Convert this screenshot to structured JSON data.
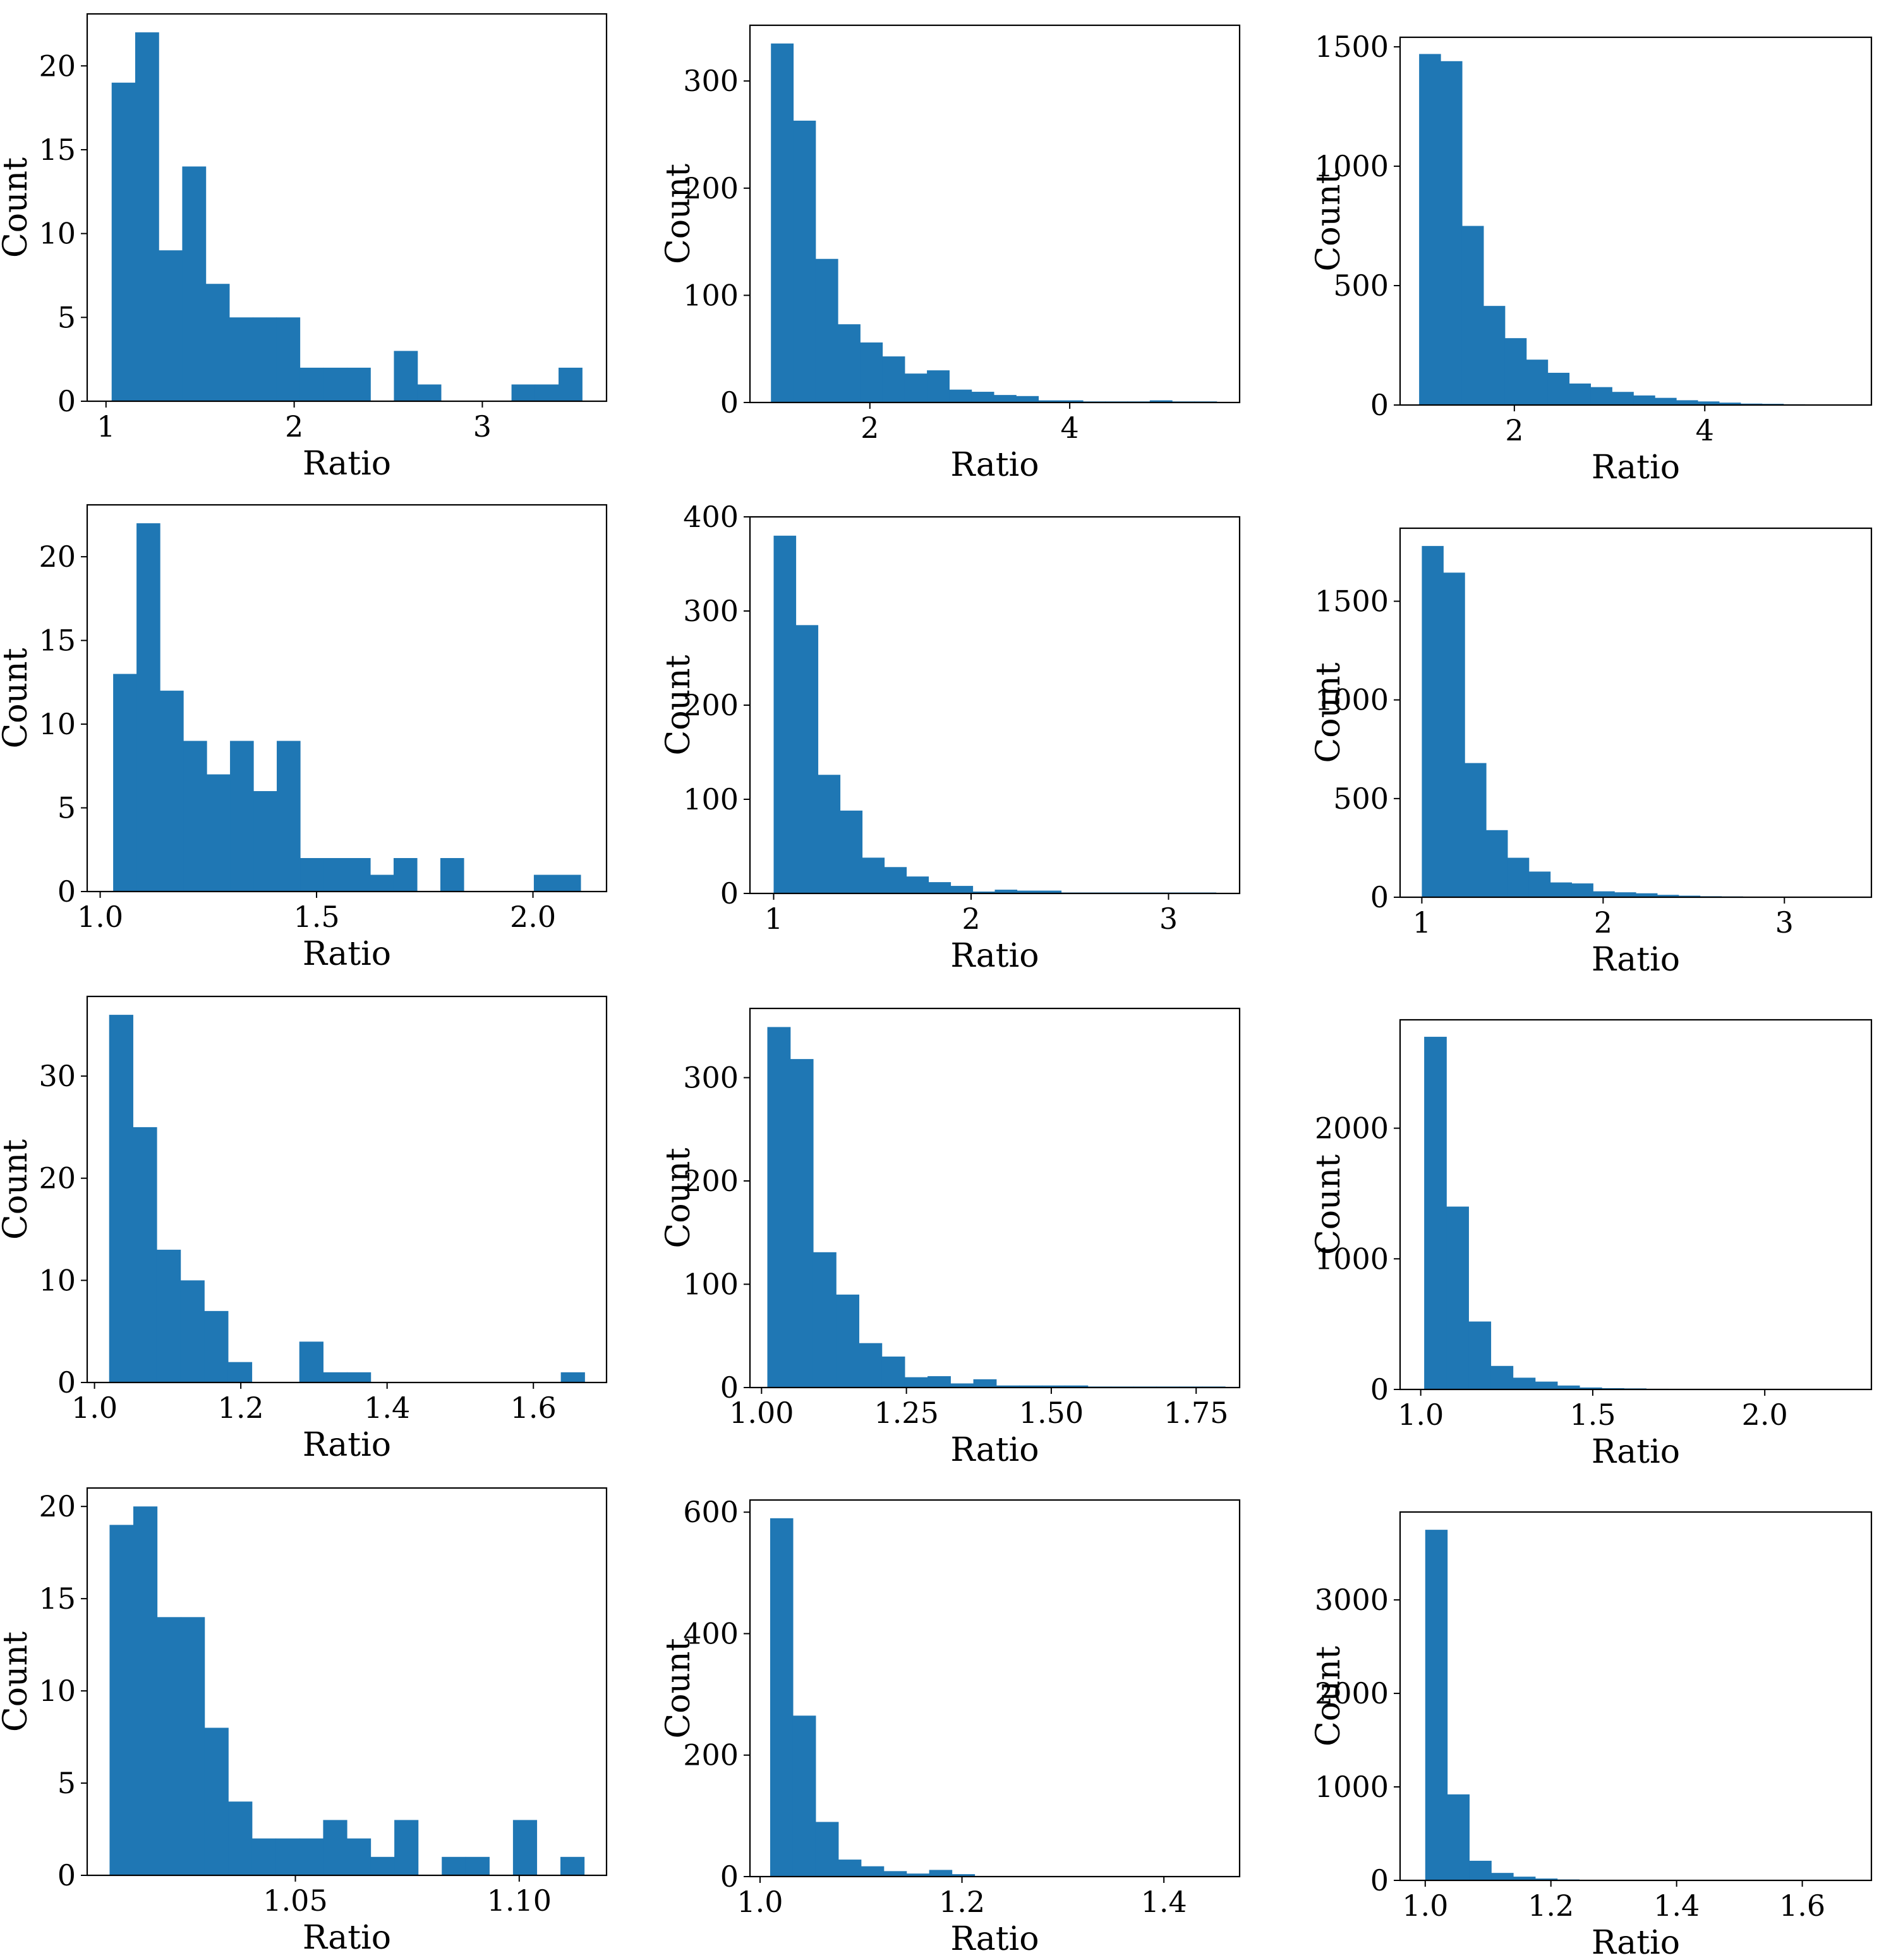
{
  "style": {
    "bar_color": "#1f77b4",
    "axis_color": "#000000"
  },
  "chart_data": [
    {
      "type": "bar",
      "xlabel": "Ratio",
      "ylabel": "Count",
      "xlim": [
        0.9,
        3.66
      ],
      "ylim": [
        0,
        23.1
      ],
      "bins": [
        1.03,
        1.155,
        1.28,
        1.405,
        1.53,
        1.655,
        1.78,
        1.905,
        2.03,
        2.155,
        2.28,
        2.405,
        2.53,
        2.655,
        2.78,
        2.905,
        3.03,
        3.155,
        3.28,
        3.405,
        3.53
      ],
      "counts": [
        19,
        22,
        9,
        14,
        7,
        5,
        5,
        5,
        2,
        2,
        2,
        0,
        3,
        1,
        0,
        0,
        0,
        1,
        1,
        2
      ],
      "xticks": [
        1,
        2,
        3
      ],
      "xtick_labels": [
        "1",
        "2",
        "3"
      ],
      "yticks": [
        0,
        5,
        10,
        15,
        20
      ],
      "ytick_labels": [
        "0",
        "5",
        "10",
        "15",
        "20"
      ]
    },
    {
      "type": "bar",
      "xlabel": "Ratio",
      "ylabel": "Count",
      "xlim": [
        0.8,
        5.7
      ],
      "ylim": [
        0,
        352
      ],
      "bins": [
        1.01,
        1.233,
        1.456,
        1.679,
        1.902,
        2.125,
        2.348,
        2.571,
        2.794,
        3.017,
        3.24,
        3.463,
        3.686,
        3.909,
        4.132,
        4.355,
        4.578,
        4.801,
        5.024,
        5.247,
        5.47
      ],
      "counts": [
        335,
        263,
        134,
        73,
        56,
        43,
        27,
        30,
        12,
        10,
        7,
        6,
        2,
        2,
        1,
        1,
        1,
        2,
        1,
        1
      ],
      "xticks": [
        2,
        4
      ],
      "xtick_labels": [
        "2",
        "4"
      ],
      "yticks": [
        0,
        100,
        200,
        300
      ],
      "ytick_labels": [
        "0",
        "100",
        "200",
        "300"
      ]
    },
    {
      "type": "bar",
      "xlabel": "Ratio",
      "ylabel": "Count",
      "xlim": [
        0.8,
        5.75
      ],
      "ylim": [
        0,
        1540
      ],
      "bins": [
        1.0,
        1.225,
        1.45,
        1.675,
        1.9,
        2.125,
        2.35,
        2.575,
        2.8,
        3.025,
        3.25,
        3.475,
        3.7,
        3.925,
        4.15,
        4.375,
        4.6,
        4.825,
        5.05,
        5.275,
        5.5
      ],
      "counts": [
        1470,
        1440,
        750,
        415,
        280,
        190,
        135,
        90,
        75,
        55,
        40,
        30,
        20,
        15,
        10,
        6,
        5,
        3,
        2,
        2
      ],
      "xticks": [
        2,
        4
      ],
      "xtick_labels": [
        "2",
        "4"
      ],
      "yticks": [
        0,
        500,
        1000,
        1500
      ],
      "ytick_labels": [
        "0",
        "500",
        "1000",
        "1500"
      ]
    },
    {
      "type": "bar",
      "xlabel": "Ratio",
      "ylabel": "Count",
      "xlim": [
        0.97,
        2.17
      ],
      "ylim": [
        0,
        23.1
      ],
      "bins": [
        1.03,
        1.084,
        1.138,
        1.192,
        1.246,
        1.3,
        1.354,
        1.408,
        1.462,
        1.516,
        1.57,
        1.624,
        1.678,
        1.732,
        1.786,
        1.84,
        1.894,
        1.948,
        2.002,
        2.056,
        2.11
      ],
      "counts": [
        13,
        22,
        12,
        9,
        7,
        9,
        6,
        9,
        2,
        2,
        2,
        1,
        2,
        0,
        2,
        0,
        0,
        0,
        1,
        1
      ],
      "xticks": [
        1.0,
        1.5,
        2.0
      ],
      "xtick_labels": [
        "1.0",
        "1.5",
        "2.0"
      ],
      "yticks": [
        0,
        5,
        10,
        15,
        20
      ],
      "ytick_labels": [
        "0",
        "5",
        "10",
        "15",
        "20"
      ]
    },
    {
      "type": "bar",
      "xlabel": "Ratio",
      "ylabel": "Count",
      "xlim": [
        0.88,
        3.36
      ],
      "ylim": [
        0,
        400
      ],
      "bins": [
        1.0,
        1.112,
        1.224,
        1.336,
        1.448,
        1.56,
        1.672,
        1.784,
        1.896,
        2.008,
        2.12,
        2.232,
        2.344,
        2.456,
        2.568,
        2.68,
        2.792,
        2.904,
        3.016,
        3.128,
        3.24
      ],
      "counts": [
        380,
        285,
        126,
        88,
        38,
        28,
        18,
        12,
        8,
        2,
        4,
        3,
        3,
        1,
        1,
        1,
        1,
        1,
        1,
        1
      ],
      "xticks": [
        1,
        2,
        3
      ],
      "xtick_labels": [
        "1",
        "2",
        "3"
      ],
      "yticks": [
        0,
        100,
        200,
        300,
        400
      ],
      "ytick_labels": [
        "0",
        "100",
        "200",
        "300",
        "400"
      ]
    },
    {
      "type": "bar",
      "xlabel": "Ratio",
      "ylabel": "Count",
      "xlim": [
        0.88,
        3.48
      ],
      "ylim": [
        0,
        1870
      ],
      "bins": [
        1.0,
        1.118,
        1.236,
        1.354,
        1.472,
        1.59,
        1.708,
        1.826,
        1.944,
        2.062,
        2.18,
        2.298,
        2.416,
        2.534,
        2.652,
        2.77,
        2.888,
        3.006,
        3.124,
        3.242,
        3.36
      ],
      "counts": [
        1780,
        1645,
        680,
        340,
        200,
        130,
        75,
        70,
        30,
        25,
        20,
        12,
        8,
        5,
        4,
        3,
        2,
        2,
        1,
        1
      ],
      "xticks": [
        1,
        2,
        3
      ],
      "xtick_labels": [
        "1",
        "2",
        "3"
      ],
      "yticks": [
        0,
        500,
        1000,
        1500
      ],
      "ytick_labels": [
        "0",
        "500",
        "1000",
        "1500"
      ]
    },
    {
      "type": "bar",
      "xlabel": "Ratio",
      "ylabel": "Count",
      "xlim": [
        0.99,
        1.7
      ],
      "ylim": [
        0,
        37.8
      ],
      "bins": [
        1.02,
        1.0525,
        1.085,
        1.1175,
        1.15,
        1.1825,
        1.215,
        1.2475,
        1.28,
        1.3125,
        1.345,
        1.3775,
        1.41,
        1.4425,
        1.475,
        1.5075,
        1.54,
        1.5725,
        1.605,
        1.6375,
        1.67
      ],
      "counts": [
        36,
        25,
        13,
        10,
        7,
        2,
        0,
        0,
        4,
        1,
        1,
        0,
        0,
        0,
        0,
        0,
        0,
        0,
        0,
        1
      ],
      "xticks": [
        1.0,
        1.2,
        1.4,
        1.6
      ],
      "xtick_labels": [
        "1.0",
        "1.2",
        "1.4",
        "1.6"
      ],
      "yticks": [
        0,
        10,
        20,
        30
      ],
      "ytick_labels": [
        "0",
        "10",
        "20",
        "30"
      ]
    },
    {
      "type": "bar",
      "xlabel": "Ratio",
      "ylabel": "Count",
      "xlim": [
        0.98,
        1.825
      ],
      "ylim": [
        0,
        367
      ],
      "bins": [
        1.01,
        1.0495,
        1.089,
        1.1285,
        1.168,
        1.2075,
        1.247,
        1.2865,
        1.326,
        1.3655,
        1.405,
        1.4445,
        1.484,
        1.5235,
        1.563,
        1.6025,
        1.642,
        1.6815,
        1.721,
        1.7605,
        1.8
      ],
      "counts": [
        349,
        318,
        131,
        90,
        43,
        30,
        10,
        11,
        4,
        8,
        2,
        2,
        2,
        2,
        1,
        1,
        1,
        1,
        1,
        1
      ],
      "xticks": [
        1.0,
        1.25,
        1.5,
        1.75
      ],
      "xtick_labels": [
        "1.00",
        "1.25",
        "1.50",
        "1.75"
      ],
      "yticks": [
        0,
        100,
        200,
        300
      ],
      "ytick_labels": [
        "0",
        "100",
        "200",
        "300"
      ]
    },
    {
      "type": "bar",
      "xlabel": "Ratio",
      "ylabel": "Count",
      "xlim": [
        0.94,
        2.31
      ],
      "ylim": [
        0,
        2830
      ],
      "bins": [
        1.01,
        1.0745,
        1.139,
        1.2035,
        1.268,
        1.3325,
        1.397,
        1.4615,
        1.526,
        1.5905,
        1.655,
        1.7195,
        1.784,
        1.8485,
        1.913,
        1.9775,
        2.042,
        2.1065,
        2.171,
        2.2355,
        2.3
      ],
      "counts": [
        2700,
        1400,
        520,
        180,
        90,
        60,
        30,
        15,
        10,
        8,
        5,
        3,
        2,
        2,
        1,
        1,
        1,
        1,
        1,
        1
      ],
      "xticks": [
        1.0,
        1.5,
        2.0
      ],
      "xtick_labels": [
        "1.0",
        "1.5",
        "2.0"
      ],
      "yticks": [
        0,
        1000,
        2000
      ],
      "ytick_labels": [
        "0",
        "1000",
        "2000"
      ]
    },
    {
      "type": "bar",
      "xlabel": "Ratio",
      "ylabel": "Count",
      "xlim": [
        1.0035,
        1.1195
      ],
      "ylim": [
        0,
        21
      ],
      "bins": [
        1.0085,
        1.0138,
        1.0191,
        1.0244,
        1.0297,
        1.035,
        1.0403,
        1.0456,
        1.0509,
        1.0562,
        1.0615,
        1.0668,
        1.0721,
        1.0774,
        1.0827,
        1.088,
        1.0933,
        1.0986,
        1.1039,
        1.1092,
        1.1145
      ],
      "counts": [
        19,
        20,
        14,
        14,
        8,
        4,
        2,
        2,
        2,
        3,
        2,
        1,
        3,
        0,
        1,
        1,
        0,
        3,
        0,
        1
      ],
      "xticks": [
        1.05,
        1.1
      ],
      "xtick_labels": [
        "1.05",
        "1.10"
      ],
      "yticks": [
        0,
        5,
        10,
        15,
        20
      ],
      "ytick_labels": [
        "0",
        "5",
        "10",
        "15",
        "20"
      ]
    },
    {
      "type": "bar",
      "xlabel": "Ratio",
      "ylabel": "Count",
      "xlim": [
        0.99,
        1.475
      ],
      "ylim": [
        0,
        620
      ],
      "bins": [
        1.01,
        1.0325,
        1.055,
        1.0775,
        1.1,
        1.1225,
        1.145,
        1.1675,
        1.19,
        1.2125,
        1.235,
        1.2575,
        1.28,
        1.3025,
        1.325,
        1.3475,
        1.37,
        1.3925,
        1.415,
        1.4375,
        1.46
      ],
      "counts": [
        590,
        265,
        90,
        28,
        17,
        9,
        5,
        11,
        4,
        1,
        1,
        1,
        1,
        1,
        1,
        1,
        1,
        1,
        1,
        1
      ],
      "xticks": [
        1.0,
        1.2,
        1.4
      ],
      "xtick_labels": [
        "1.0",
        "1.2",
        "1.4"
      ],
      "yticks": [
        0,
        200,
        400,
        600
      ],
      "ytick_labels": [
        "0",
        "200",
        "400",
        "600"
      ]
    },
    {
      "type": "bar",
      "xlabel": "Ratio",
      "ylabel": "Count",
      "xlim": [
        0.96,
        1.71
      ],
      "ylim": [
        0,
        3940
      ],
      "bins": [
        1.0,
        1.035,
        1.07,
        1.105,
        1.14,
        1.175,
        1.21,
        1.245,
        1.28,
        1.315,
        1.35,
        1.385,
        1.42,
        1.455,
        1.49,
        1.525,
        1.56,
        1.595,
        1.63,
        1.665,
        1.7
      ],
      "counts": [
        3750,
        920,
        210,
        80,
        40,
        20,
        10,
        5,
        3,
        2,
        2,
        1,
        1,
        1,
        1,
        1,
        1,
        1,
        1,
        1
      ],
      "xticks": [
        1.0,
        1.2,
        1.4,
        1.6
      ],
      "xtick_labels": [
        "1.0",
        "1.2",
        "1.4",
        "1.6"
      ],
      "yticks": [
        0,
        1000,
        2000,
        3000
      ],
      "ytick_labels": [
        "0",
        "1000",
        "2000",
        "3000"
      ]
    }
  ]
}
